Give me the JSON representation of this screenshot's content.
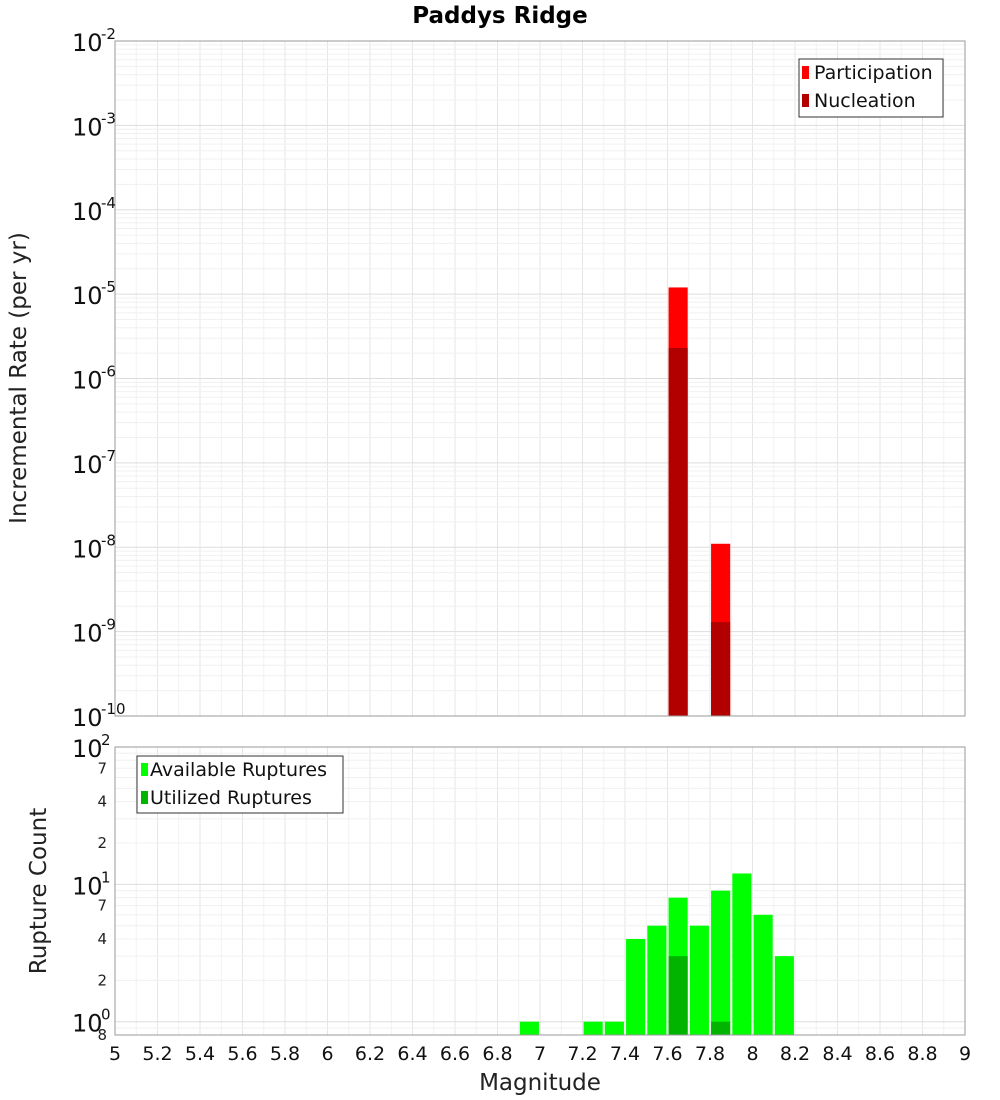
{
  "title": "Paddys Ridge",
  "x_axis": {
    "label": "Magnitude",
    "range": [
      5,
      9
    ],
    "ticks": [
      "5",
      "5.2",
      "5.4",
      "5.6",
      "5.8",
      "6",
      "6.2",
      "6.4",
      "6.6",
      "6.8",
      "7",
      "7.2",
      "7.4",
      "7.6",
      "7.8",
      "8",
      "8.2",
      "8.4",
      "8.6",
      "8.8",
      "9"
    ]
  },
  "chart_data": [
    {
      "type": "bar",
      "ylabel": "Incremental Rate (per yr)",
      "yscale": "log",
      "ylim": [
        1e-10,
        0.01
      ],
      "y_tick_labels": [
        {
          "base": "10",
          "exp": "-2"
        },
        {
          "base": "10",
          "exp": "-3"
        },
        {
          "base": "10",
          "exp": "-4"
        },
        {
          "base": "10",
          "exp": "-5"
        },
        {
          "base": "10",
          "exp": "-6"
        },
        {
          "base": "10",
          "exp": "-7"
        },
        {
          "base": "10",
          "exp": "-8"
        },
        {
          "base": "10",
          "exp": "-9"
        },
        {
          "base": "10",
          "exp": "-10"
        }
      ],
      "legend_position": "top-right",
      "bar_width": 0.09,
      "series": [
        {
          "name": "Participation",
          "color": "#ff0000",
          "points": [
            {
              "x": 7.65,
              "y": 1.2e-05
            },
            {
              "x": 7.85,
              "y": 1.1e-08
            }
          ]
        },
        {
          "name": "Nucleation",
          "color": "#b20000",
          "points": [
            {
              "x": 7.65,
              "y": 2.3e-06
            },
            {
              "x": 7.85,
              "y": 1.3e-09
            }
          ]
        }
      ]
    },
    {
      "type": "bar",
      "ylabel": "Rupture Count",
      "yscale": "log",
      "ylim": [
        0.8,
        100
      ],
      "y_tick_labels": [
        {
          "base": "10",
          "exp": "2"
        },
        {
          "base": "10",
          "exp": "1"
        },
        {
          "base": "10",
          "exp": "0"
        }
      ],
      "y_minor_tick_labels": [
        {
          "value": 70,
          "label": "7"
        },
        {
          "value": 40,
          "label": "4"
        },
        {
          "value": 20,
          "label": "2"
        },
        {
          "value": 7,
          "label": "7"
        },
        {
          "value": 4,
          "label": "4"
        },
        {
          "value": 2,
          "label": "2"
        },
        {
          "value": 0.8,
          "label": "8"
        }
      ],
      "legend_position": "top-left",
      "bar_width": 0.09,
      "series": [
        {
          "name": "Available Ruptures",
          "color": "#00ff00",
          "points": [
            {
              "x": 6.95,
              "y": 1
            },
            {
              "x": 7.25,
              "y": 1
            },
            {
              "x": 7.35,
              "y": 1
            },
            {
              "x": 7.45,
              "y": 4
            },
            {
              "x": 7.55,
              "y": 5
            },
            {
              "x": 7.65,
              "y": 8
            },
            {
              "x": 7.75,
              "y": 5
            },
            {
              "x": 7.85,
              "y": 9
            },
            {
              "x": 7.95,
              "y": 12
            },
            {
              "x": 8.05,
              "y": 6
            },
            {
              "x": 8.15,
              "y": 3
            }
          ]
        },
        {
          "name": "Utilized Ruptures",
          "color": "#00b400",
          "points": [
            {
              "x": 7.65,
              "y": 3
            },
            {
              "x": 7.85,
              "y": 1
            }
          ]
        }
      ]
    }
  ]
}
